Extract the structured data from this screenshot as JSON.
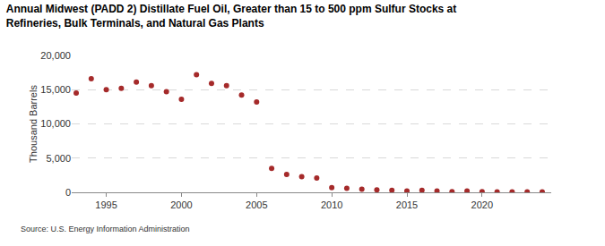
{
  "chart_data": {
    "type": "scatter",
    "title": "Annual Midwest (PADD 2) Distillate Fuel Oil, Greater than 15 to 500 ppm Sulfur Stocks at\nRefineries, Bulk Terminals, and Natural Gas Plants",
    "y_label": "Thousand Barrels",
    "annotations": [
      "Source: U.S. Energy Information Administration"
    ],
    "x": [
      1993,
      1994,
      1995,
      1996,
      1997,
      1998,
      1999,
      2000,
      2001,
      2002,
      2003,
      2004,
      2005,
      2006,
      2007,
      2008,
      2009,
      2010,
      2011,
      2012,
      2013,
      2014,
      2015,
      2016,
      2017,
      2018,
      2019,
      2020,
      2021,
      2022,
      2023,
      2024
    ],
    "values": [
      14500,
      16600,
      15000,
      15200,
      16100,
      15600,
      14700,
      13600,
      17200,
      15900,
      15600,
      14200,
      13200,
      3500,
      2600,
      2300,
      2100,
      700,
      600,
      450,
      350,
      300,
      200,
      300,
      200,
      100,
      200,
      100,
      50,
      50,
      50,
      50
    ],
    "color": "#a52a2a",
    "marker": "circle",
    "xlim": [
      1992.7,
      2024.6
    ],
    "xticks": [
      1995,
      2000,
      2005,
      2010,
      2015,
      2020
    ],
    "ylim": [
      0,
      20000
    ],
    "yticks": [
      0,
      {
        "value": 5000,
        "label": "5,000"
      },
      {
        "value": 10000,
        "label": "10,000"
      },
      {
        "value": 15000,
        "label": "15,000"
      },
      {
        "value": 20000,
        "label": "20,000"
      }
    ],
    "grid": true
  }
}
